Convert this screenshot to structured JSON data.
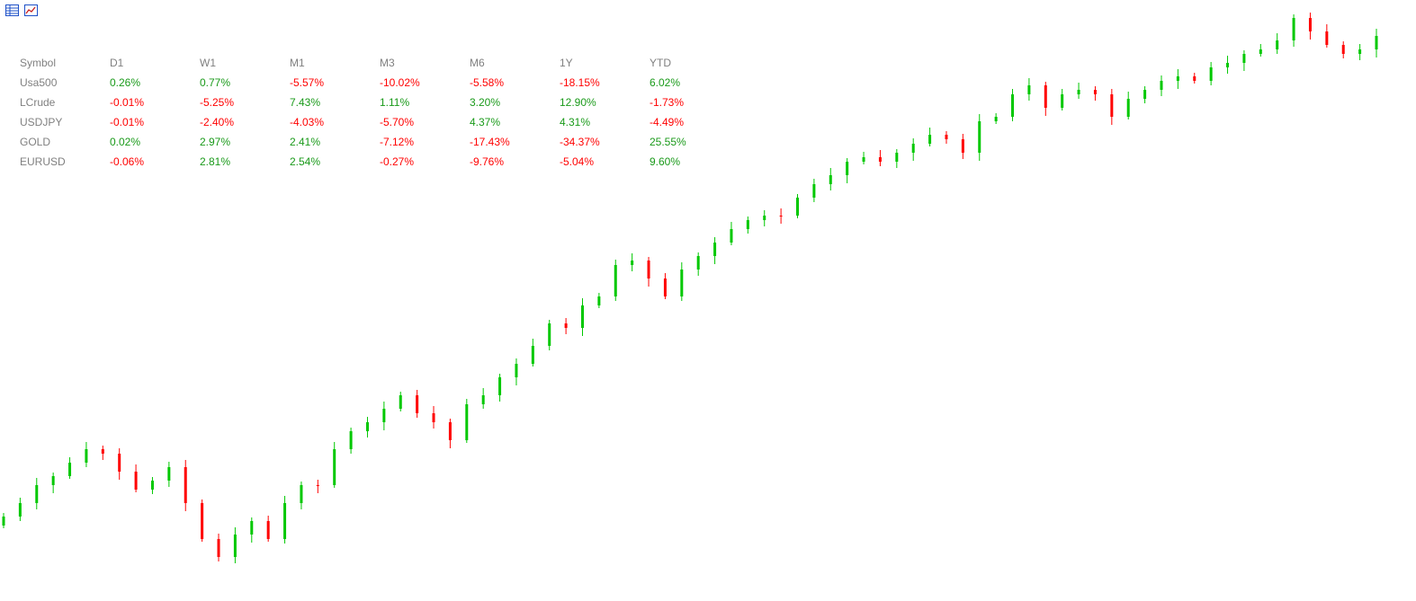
{
  "toolbar": {
    "buttons": [
      {
        "icon": "table-view-icon",
        "color": "#1e50c8"
      },
      {
        "icon": "chart-view-icon",
        "color": "#c81e1e"
      }
    ]
  },
  "table": {
    "headers": [
      "Symbol",
      "D1",
      "W1",
      "M1",
      "M3",
      "M6",
      "1Y",
      "YTD"
    ],
    "rows": [
      {
        "symbol": "Usa500",
        "values": [
          "0.26%",
          "0.77%",
          "-5.57%",
          "-10.02%",
          "-5.58%",
          "-18.15%",
          "6.02%"
        ]
      },
      {
        "symbol": "LCrude",
        "values": [
          "-0.01%",
          "-5.25%",
          "7.43%",
          "1.11%",
          "3.20%",
          "12.90%",
          "-1.73%"
        ]
      },
      {
        "symbol": "USDJPY",
        "values": [
          "-0.01%",
          "-2.40%",
          "-4.03%",
          "-5.70%",
          "4.37%",
          "4.31%",
          "-4.49%"
        ]
      },
      {
        "symbol": "GOLD",
        "values": [
          "0.02%",
          "2.97%",
          "2.41%",
          "-7.12%",
          "-17.43%",
          "-34.37%",
          "25.55%"
        ]
      },
      {
        "symbol": "EURUSD",
        "values": [
          "-0.06%",
          "2.81%",
          "2.54%",
          "-0.27%",
          "-9.76%",
          "-5.04%",
          "9.60%"
        ]
      }
    ],
    "positive_color": "#1a9a1a",
    "negative_color": "#ff0000",
    "header_color": "#808080"
  },
  "chart_data": {
    "type": "candlestick",
    "up_color": "#00c800",
    "down_color": "#ff0000",
    "grid": false,
    "closes": [
      575,
      560,
      540,
      530,
      515,
      500,
      505,
      525,
      545,
      535,
      520,
      560,
      600,
      620,
      595,
      580,
      600,
      560,
      540,
      540,
      500,
      480,
      470,
      455,
      440,
      460,
      470,
      490,
      450,
      440,
      420,
      405,
      385,
      360,
      365,
      340,
      330,
      295,
      290,
      310,
      330,
      300,
      285,
      270,
      255,
      245,
      240,
      240,
      220,
      205,
      195,
      180,
      175,
      180,
      170,
      160,
      150,
      155,
      170,
      135,
      130,
      105,
      95,
      120,
      105,
      100,
      105,
      130,
      110,
      100,
      90,
      85,
      90,
      75,
      70,
      60,
      55,
      45,
      20,
      35,
      50,
      60,
      55,
      40
    ]
  }
}
